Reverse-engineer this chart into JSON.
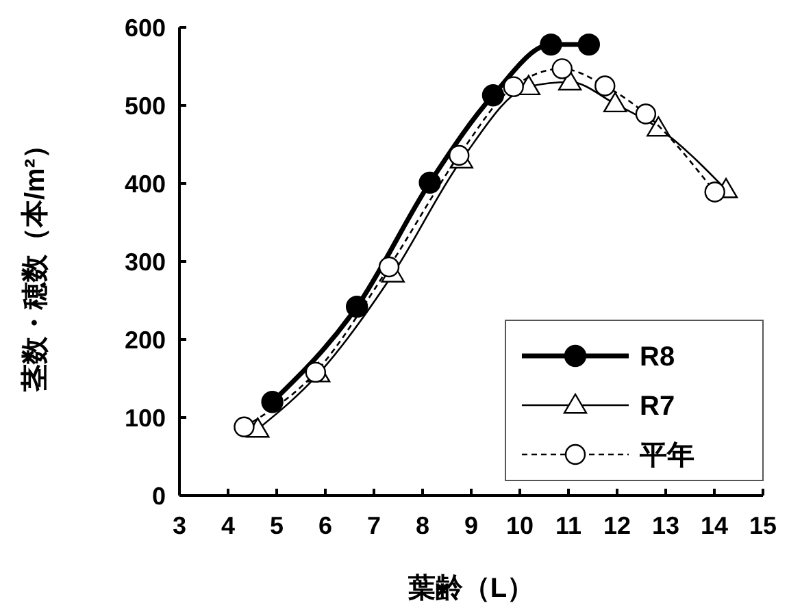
{
  "chart_data": {
    "type": "line",
    "xlabel": "葉齢（L）",
    "ylabel": "茎数・穂数（本/m²）",
    "xlim": [
      3,
      15
    ],
    "xticks": [
      3,
      4,
      5,
      6,
      7,
      8,
      9,
      10,
      11,
      12,
      13,
      14,
      15
    ],
    "ylim": [
      0,
      600
    ],
    "yticks": [
      0,
      100,
      200,
      300,
      400,
      500,
      600
    ],
    "grid": false,
    "legend": "bottom right",
    "series": [
      {
        "name": "R8",
        "color": "#000000",
        "marker": "circle",
        "line_style": "solid",
        "x": [
          4.91,
          6.65,
          8.15,
          9.45,
          10.64,
          11.42
        ],
        "values": [
          120,
          242,
          401,
          513,
          578,
          578
        ]
      },
      {
        "name": "R7",
        "color": "#000000",
        "marker": "triangle",
        "line_style": "solid",
        "x": [
          4.61,
          5.86,
          7.39,
          8.8,
          10.18,
          11.03,
          11.96,
          12.85,
          14.24
        ],
        "values": [
          85,
          156,
          284,
          430,
          524,
          530,
          502,
          471,
          392
        ]
      },
      {
        "name": "平年",
        "color": "#000000",
        "marker": "circle",
        "line_style": "dashed",
        "x": [
          4.33,
          5.8,
          7.31,
          8.75,
          9.87,
          10.87,
          11.75,
          12.59,
          14.01
        ],
        "values": [
          88,
          158,
          293,
          436,
          524,
          547,
          525,
          489,
          389
        ]
      }
    ]
  }
}
